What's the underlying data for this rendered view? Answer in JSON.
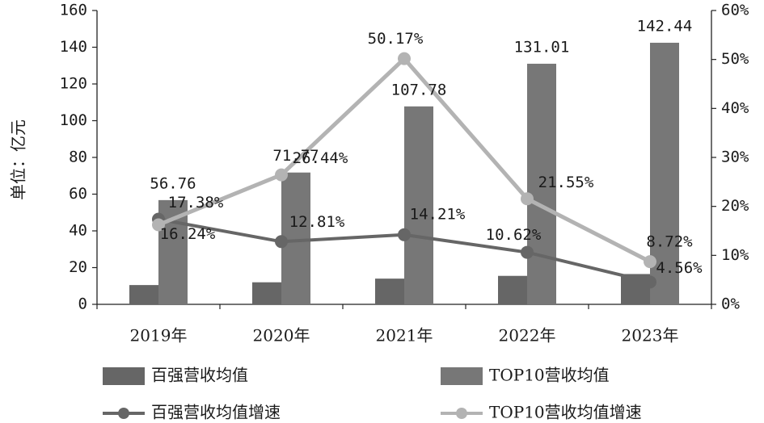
{
  "chart_data": {
    "type": "bar",
    "categories": [
      "2019年",
      "2020年",
      "2021年",
      "2022年",
      "2023年"
    ],
    "ylabel": "单位：亿元",
    "ylim": [
      0,
      160
    ],
    "yticks": [
      "0",
      "20",
      "40",
      "60",
      "80",
      "100",
      "120",
      "140",
      "160"
    ],
    "y2lim": [
      0,
      60
    ],
    "y2ticks": [
      "0%",
      "10%",
      "20%",
      "30%",
      "40%",
      "50%",
      "60%"
    ],
    "grid": false,
    "legend_position": "bottom",
    "series": [
      {
        "name": "百强营收均值",
        "kind": "bar",
        "axis": "left",
        "color": "#666666",
        "values": [
          10.5,
          12,
          14,
          15.5,
          16.5
        ],
        "labels": [
          "",
          "",
          "",
          "",
          ""
        ]
      },
      {
        "name": "TOP10营收均值",
        "kind": "bar",
        "axis": "left",
        "color": "#777777",
        "values": [
          56.76,
          71.77,
          107.78,
          131.01,
          142.44
        ],
        "labels": [
          "56.76",
          "71.77",
          "107.78",
          "131.01",
          "142.44"
        ]
      },
      {
        "name": "百强营收均值增速",
        "kind": "line",
        "axis": "right",
        "color": "#666666",
        "values": [
          17.38,
          12.81,
          14.21,
          10.62,
          4.56
        ],
        "labels": [
          "17.38%",
          "12.81%",
          "14.21%",
          "10.62%",
          "4.56%"
        ]
      },
      {
        "name": "TOP10营收均值增速",
        "kind": "line",
        "axis": "right",
        "color": "#b3b3b3",
        "values": [
          16.24,
          26.44,
          50.17,
          21.55,
          8.72
        ],
        "labels": [
          "16.24%",
          "26.44%",
          "50.17%",
          "21.55%",
          "8.72%"
        ]
      }
    ]
  }
}
